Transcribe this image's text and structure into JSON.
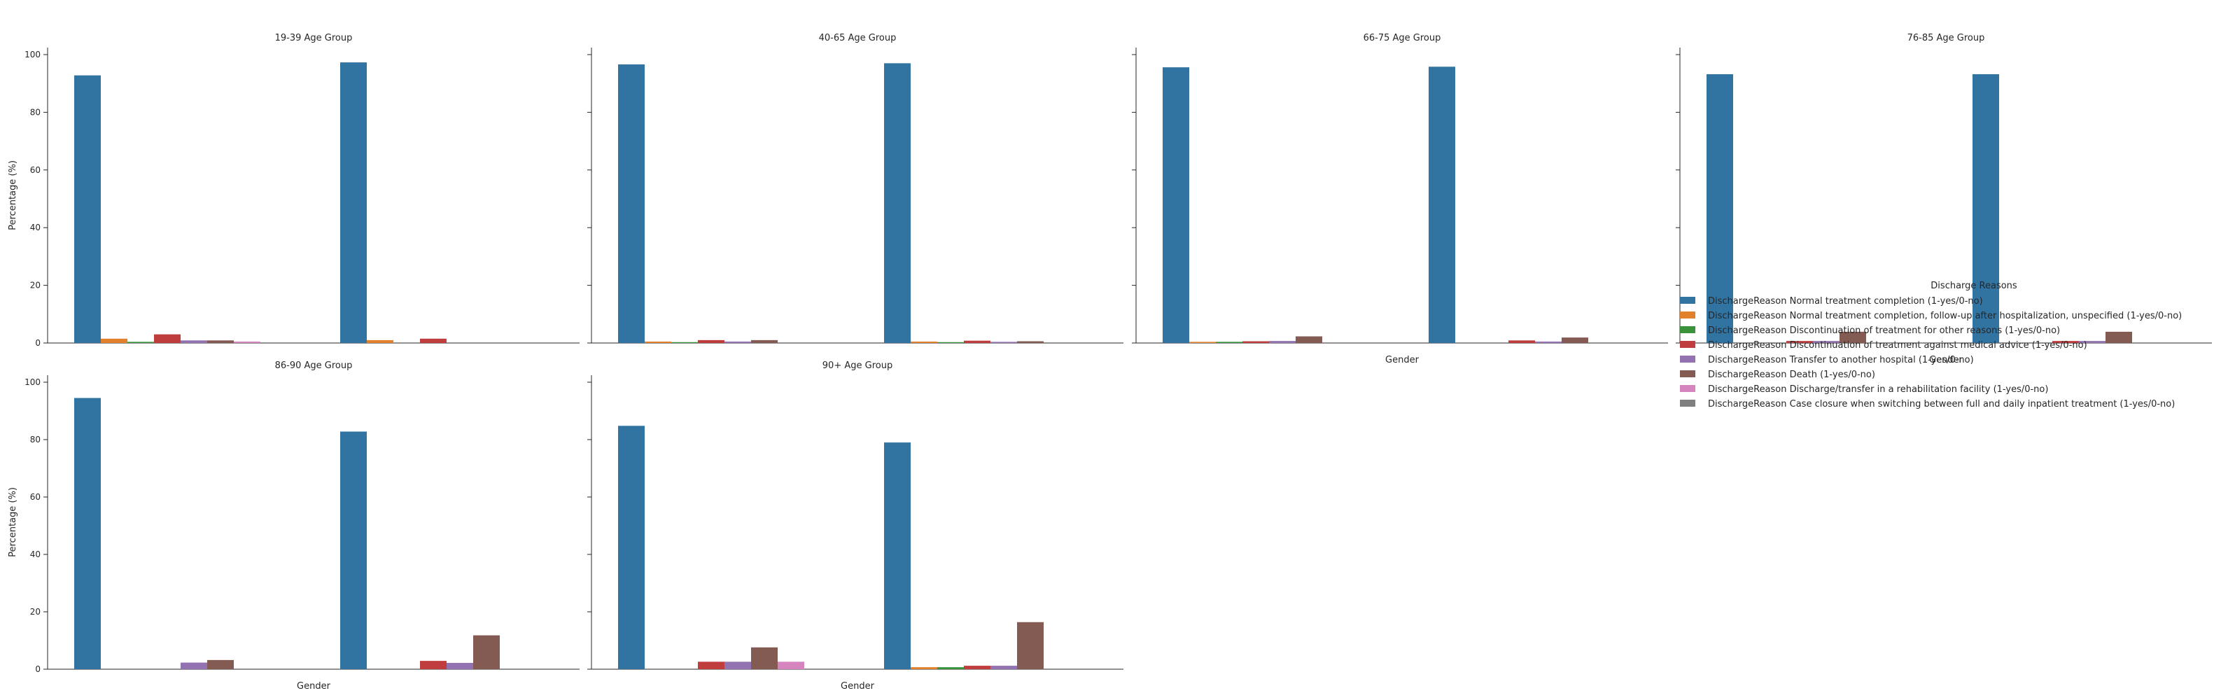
{
  "chart_data": {
    "type": "bar",
    "layout": "facet-grid",
    "grid": false,
    "legend_placement": "right",
    "legend_title": "Discharge Reasons",
    "ylabel": "Percentage (%)",
    "xlabel": "Gender",
    "ylim": [
      0,
      100
    ],
    "yticks": [
      0,
      20,
      40,
      60,
      80,
      100
    ],
    "series": [
      {
        "name": "DischargeReason Normal treatment completion (1-yes/0-no)",
        "color": "#3274a1"
      },
      {
        "name": "DischargeReason Normal treatment completion, follow-up after hospitalization, unspecified (1-yes/0-no)",
        "color": "#e1812c"
      },
      {
        "name": "DischargeReason Discontinuation of treatment for other reasons (1-yes/0-no)",
        "color": "#3a923a"
      },
      {
        "name": "DischargeReason Discontinuation of treatment against  medical advice (1-yes/0-no)",
        "color": "#c03d3e"
      },
      {
        "name": "DischargeReason Transfer to another hospital (1-yes/0-no)",
        "color": "#9372b2"
      },
      {
        "name": "DischargeReason Death (1-yes/0-no)",
        "color": "#845b53"
      },
      {
        "name": "DischargeReason Discharge/transfer in a rehabilitation facility (1-yes/0-no)",
        "color": "#d684bd"
      },
      {
        "name": "DischargeReason Case closure when switching between full and daily inpatient treatment (1-yes/0-no)",
        "color": "#7f7f7f"
      }
    ],
    "facets": [
      {
        "title": "19-39 Age Group",
        "groups": [
          [
            92.8,
            1.5,
            0.4,
            3.0,
            0.9,
            0.9,
            0.5,
            0
          ],
          [
            97.3,
            1.0,
            0,
            1.5,
            0,
            0,
            0,
            0
          ]
        ]
      },
      {
        "title": "40-65 Age Group",
        "groups": [
          [
            96.6,
            0.5,
            0.3,
            1.0,
            0.5,
            1.0,
            0,
            0
          ],
          [
            97.0,
            0.5,
            0.3,
            0.8,
            0.4,
            0.6,
            0,
            0
          ]
        ]
      },
      {
        "title": "66-75 Age Group",
        "groups": [
          [
            95.6,
            0.4,
            0.4,
            0.6,
            0.7,
            2.3,
            0,
            0
          ],
          [
            95.8,
            0,
            0,
            0.9,
            0.5,
            1.9,
            0,
            0
          ]
        ]
      },
      {
        "title": "76-85 Age Group",
        "groups": [
          [
            93.2,
            0,
            0,
            0.7,
            0.7,
            3.9,
            0,
            0
          ],
          [
            93.2,
            0,
            0,
            0.7,
            0.7,
            3.9,
            0,
            0
          ]
        ]
      },
      {
        "title": "86-90 Age Group",
        "groups": [
          [
            94.5,
            0,
            0,
            0,
            2.3,
            3.2,
            0,
            0
          ],
          [
            82.8,
            0,
            0,
            2.9,
            2.2,
            11.8,
            0,
            0
          ]
        ]
      },
      {
        "title": "90+ Age Group",
        "groups": [
          [
            84.8,
            0,
            0,
            2.6,
            2.6,
            7.6,
            2.6,
            0
          ],
          [
            79.0,
            0.7,
            0.7,
            1.2,
            1.2,
            16.4,
            0,
            0
          ]
        ]
      }
    ]
  }
}
